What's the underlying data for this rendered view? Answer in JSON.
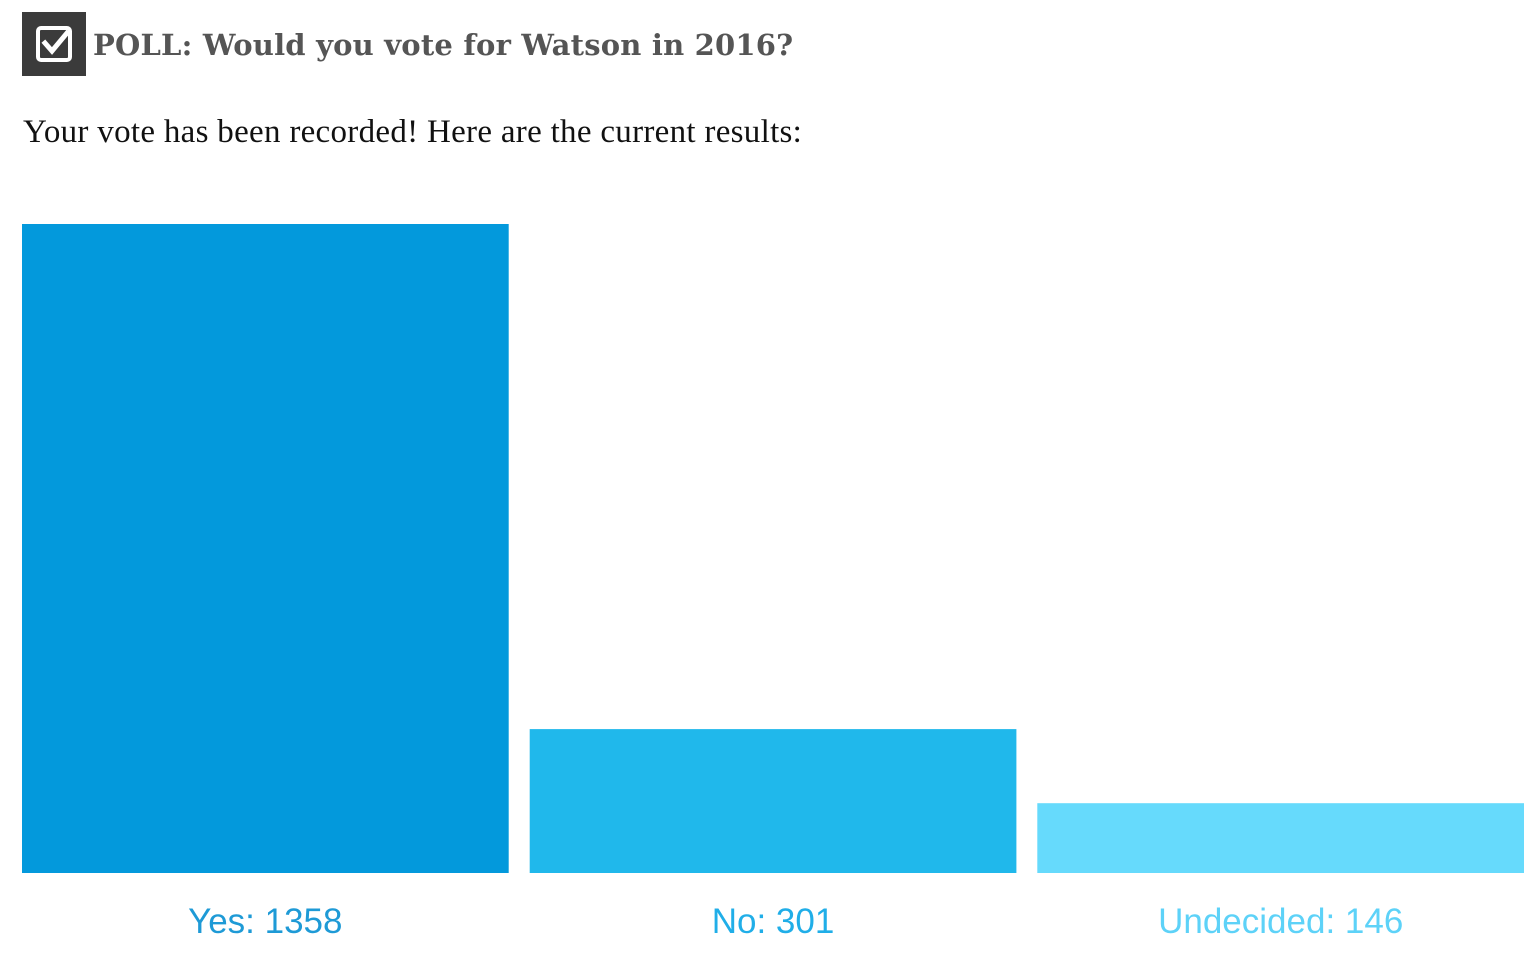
{
  "poll": {
    "title": "POLL: Would you vote for Watson in 2016?",
    "message": "Your vote has been recorded! Here are the current results:",
    "icon": "checkbox-checked-icon"
  },
  "colors": {
    "icon_background": "#3b3b3b",
    "title_text": "#555555"
  },
  "chart_data": {
    "type": "bar",
    "categories": [
      "Yes",
      "No",
      "Undecided"
    ],
    "values": [
      1358,
      301,
      146
    ],
    "labels": [
      "Yes: 1358",
      "No: 301",
      "Undecided: 146"
    ],
    "bar_colors": [
      "#0399dc",
      "#20b8eb",
      "#66dafc"
    ],
    "label_colors": [
      "#1e9ad6",
      "#20aee8",
      "#5dd2f8"
    ],
    "grid": false,
    "legend": "none"
  }
}
